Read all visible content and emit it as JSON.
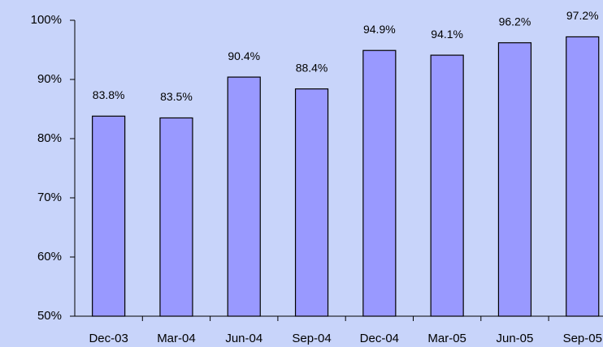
{
  "chart_data": {
    "type": "bar",
    "categories": [
      "Dec-03",
      "Mar-04",
      "Jun-04",
      "Sep-04",
      "Dec-04",
      "Mar-05",
      "Jun-05",
      "Sep-05"
    ],
    "values": [
      83.8,
      83.5,
      90.4,
      88.4,
      94.9,
      94.1,
      96.2,
      97.2
    ],
    "value_labels": [
      "83.8%",
      "83.5%",
      "90.4%",
      "88.4%",
      "94.9%",
      "94.1%",
      "96.2%",
      "97.2%"
    ],
    "color": "#9999ff",
    "ylim": [
      50,
      100
    ],
    "yticks": [
      {
        "value": 50,
        "label": "50%"
      },
      {
        "value": 60,
        "label": "60%"
      },
      {
        "value": 70,
        "label": "70%"
      },
      {
        "value": 80,
        "label": "80%"
      },
      {
        "value": 90,
        "label": "90%"
      },
      {
        "value": 100,
        "label": "100%"
      }
    ],
    "grid": false
  }
}
